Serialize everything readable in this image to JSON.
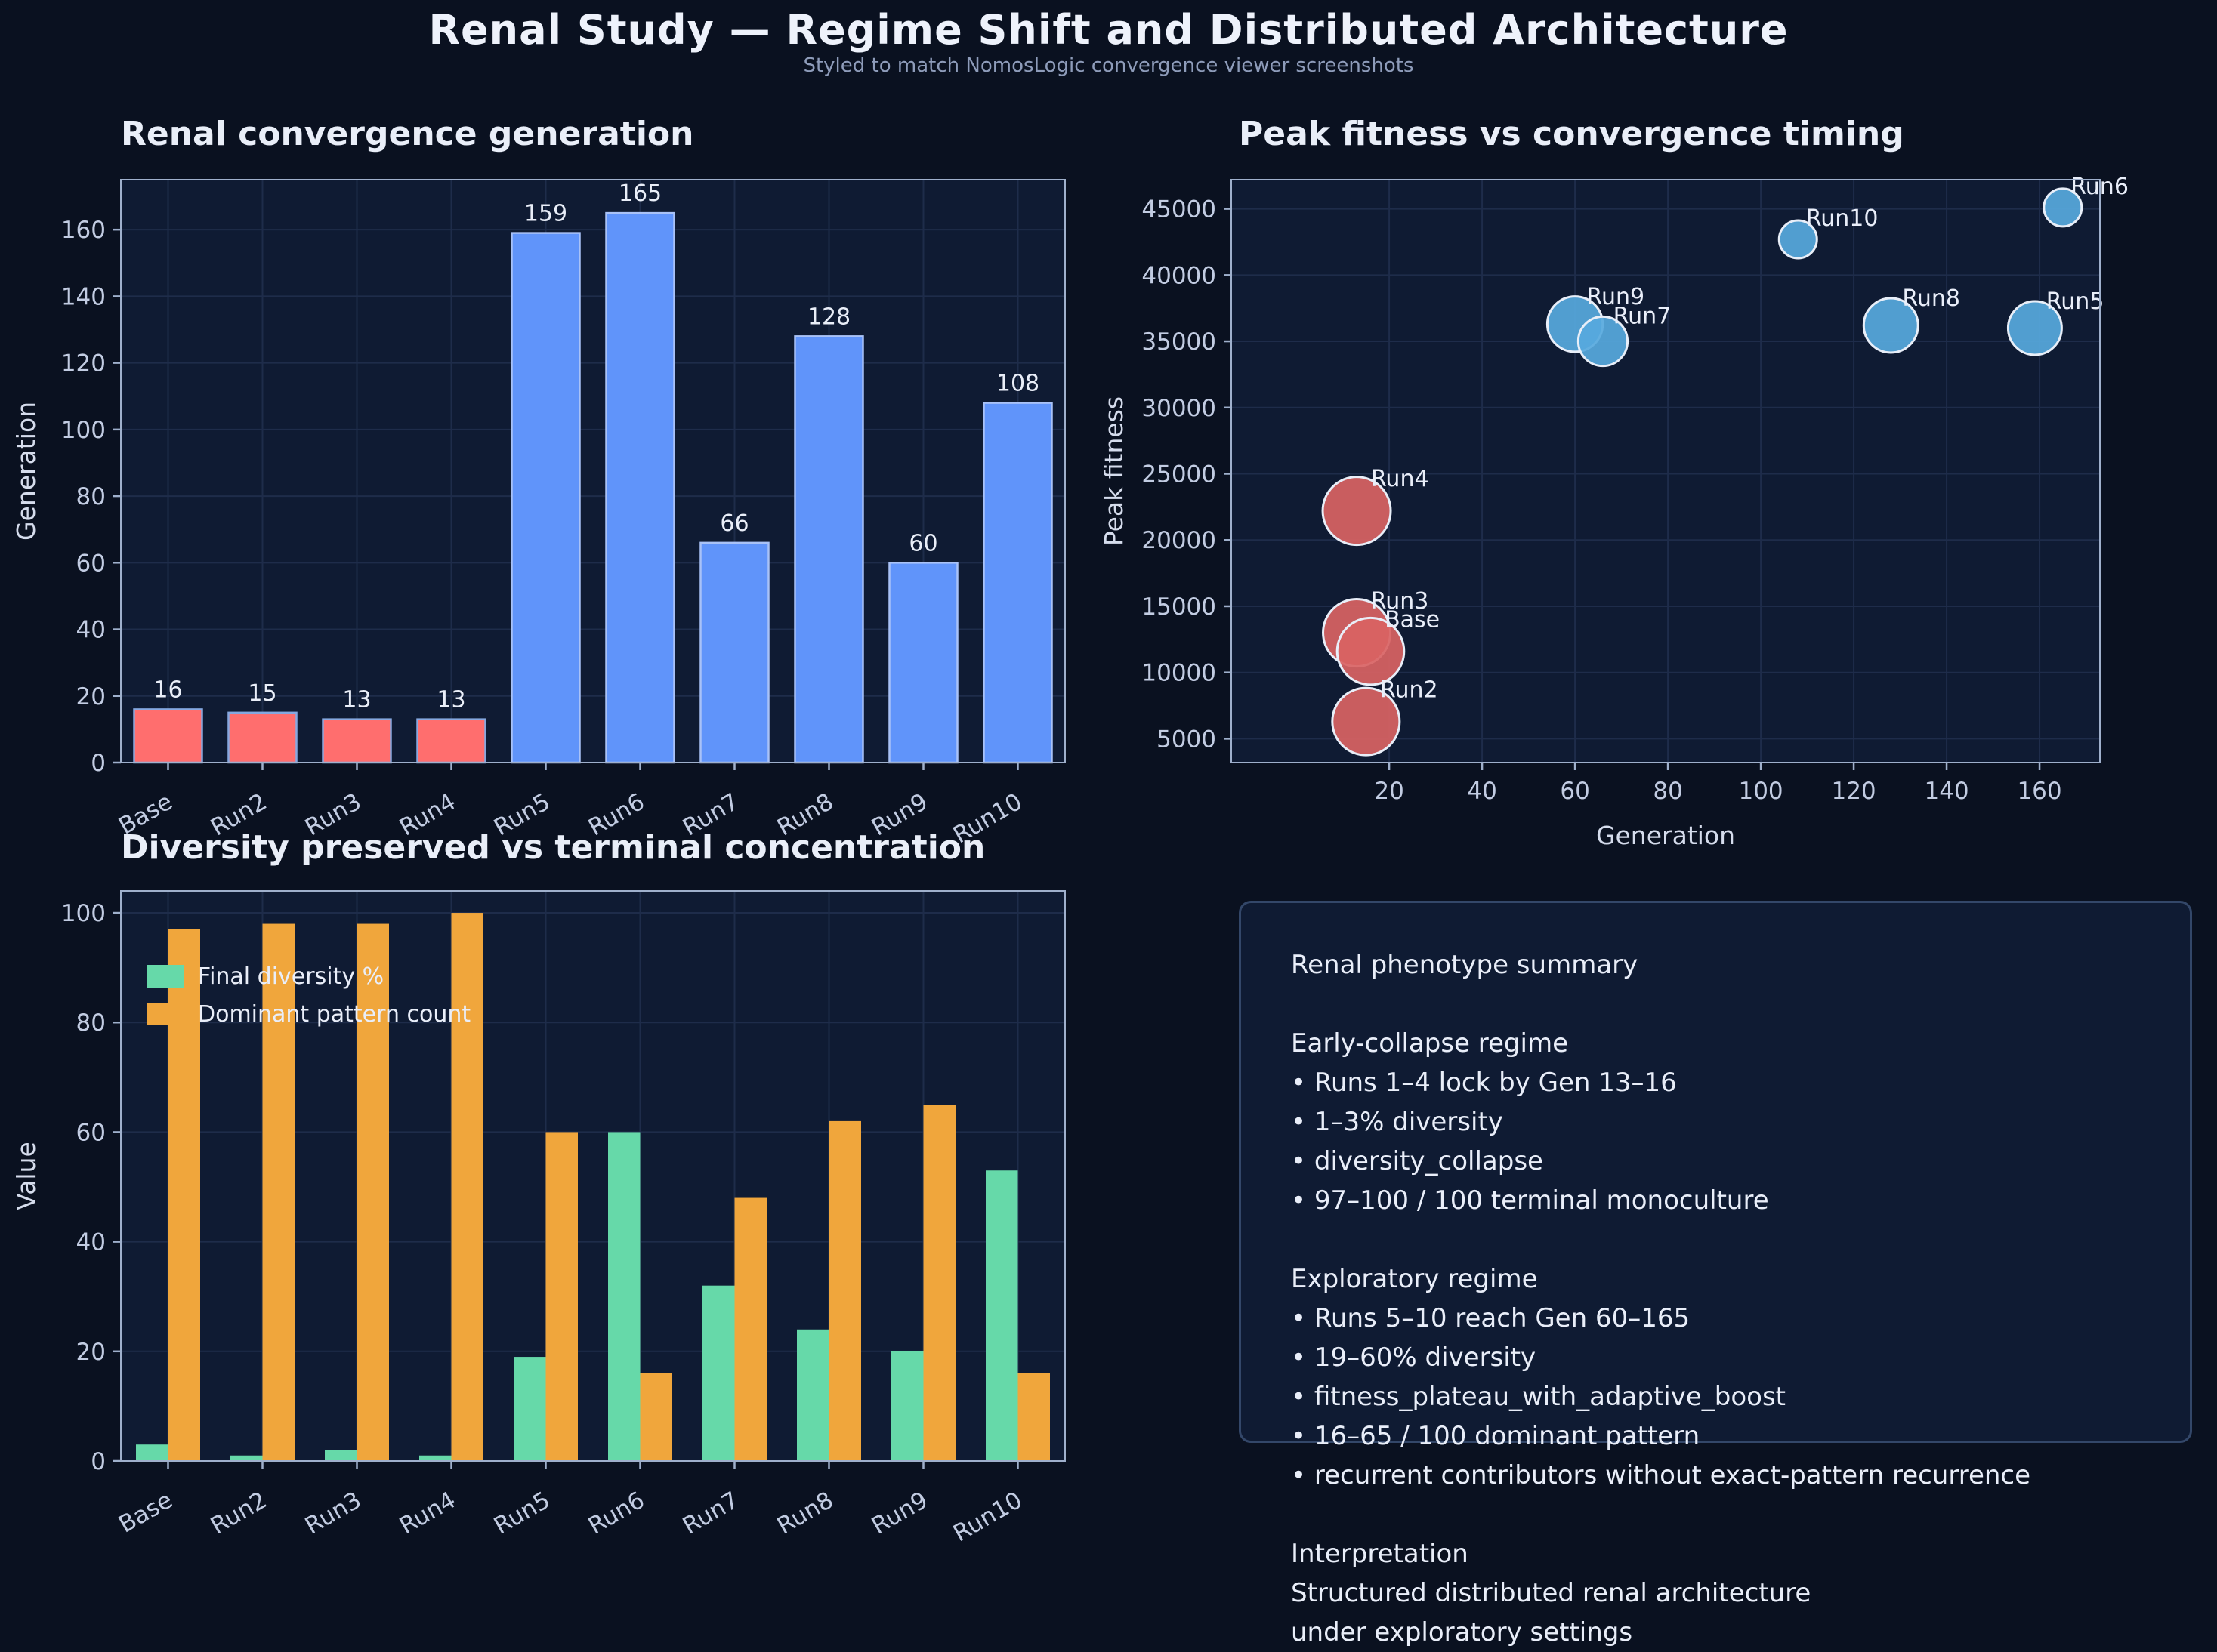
{
  "page": {
    "title": "Renal Study — Regime Shift and Distributed Architecture",
    "subtitle": "Styled to match NomosLogic convergence viewer screenshots"
  },
  "colors": {
    "page_bg": "#0a1120",
    "plot_bg": "#0f1b33",
    "grid": "#1e2c4a",
    "spine": "#9fb0cc",
    "tick_label": "#c2cce2",
    "axis_label": "#d5dcec",
    "title": "#e9eef8",
    "subtitle": "#8e9cba",
    "value_label": "#e9eef8",
    "bar_early": "#ff6e6e",
    "bar_early_edge": "#85a8e0",
    "bar_exploratory": "#6094fa",
    "bar_exploratory_edge": "#a9c2f7",
    "scatter_early": "#d96363",
    "scatter_exploratory": "#57a9dd",
    "scatter_edge": "#e8eef8",
    "green": "#66d9a9",
    "orange": "#f0a63c",
    "panel_border": "#334769",
    "panel_bg": "#0f1b33",
    "panel_text": "#e9eef9"
  },
  "chart_data": [
    {
      "id": "convergence",
      "type": "bar",
      "title": "Renal convergence generation",
      "xlabel": "",
      "ylabel": "Generation",
      "categories": [
        "Base",
        "Run2",
        "Run3",
        "Run4",
        "Run5",
        "Run6",
        "Run7",
        "Run8",
        "Run9",
        "Run10"
      ],
      "values": [
        16,
        15,
        13,
        13,
        159,
        165,
        66,
        128,
        60,
        108
      ],
      "groups": [
        "early",
        "early",
        "early",
        "early",
        "exploratory",
        "exploratory",
        "exploratory",
        "exploratory",
        "exploratory",
        "exploratory"
      ],
      "ylim": [
        0,
        175
      ],
      "yticks": [
        0,
        20,
        40,
        60,
        80,
        100,
        120,
        140,
        160
      ],
      "grid": true,
      "value_labels": true
    },
    {
      "id": "timing",
      "type": "scatter",
      "title": "Peak fitness vs convergence timing",
      "xlabel": "Generation",
      "ylabel": "Peak fitness",
      "xlim": [
        -14,
        173
      ],
      "ylim": [
        3200,
        47200
      ],
      "xticks": [
        20,
        40,
        60,
        80,
        100,
        120,
        140,
        160
      ],
      "yticks": [
        5000,
        10000,
        15000,
        20000,
        25000,
        30000,
        35000,
        40000,
        45000
      ],
      "grid": true,
      "points": [
        {
          "label": "Run3",
          "x": 13,
          "y": 13000,
          "size": 98,
          "group": "early"
        },
        {
          "label": "Run2",
          "x": 15,
          "y": 6300,
          "size": 98,
          "group": "early"
        },
        {
          "label": "Run4",
          "x": 13,
          "y": 22200,
          "size": 100,
          "group": "early"
        },
        {
          "label": "Base",
          "x": 16,
          "y": 11600,
          "size": 97,
          "group": "early"
        },
        {
          "label": "Run9",
          "x": 60,
          "y": 36300,
          "size": 65,
          "group": "exploratory"
        },
        {
          "label": "Run7",
          "x": 66,
          "y": 35000,
          "size": 48,
          "group": "exploratory"
        },
        {
          "label": "Run5",
          "x": 159,
          "y": 36000,
          "size": 60,
          "group": "exploratory"
        },
        {
          "label": "Run8",
          "x": 128,
          "y": 36200,
          "size": 62,
          "group": "exploratory"
        },
        {
          "label": "Run6",
          "x": 165,
          "y": 45100,
          "size": 16,
          "group": "exploratory"
        },
        {
          "label": "Run10",
          "x": 108,
          "y": 42700,
          "size": 16,
          "group": "exploratory"
        }
      ]
    },
    {
      "id": "diversity",
      "type": "grouped_bar",
      "title": "Diversity preserved vs terminal concentration",
      "xlabel": "",
      "ylabel": "Value",
      "categories": [
        "Base",
        "Run2",
        "Run3",
        "Run4",
        "Run5",
        "Run6",
        "Run7",
        "Run8",
        "Run9",
        "Run10"
      ],
      "series": [
        {
          "name": "Final diversity %",
          "color_key": "green",
          "values": [
            3,
            1,
            2,
            1,
            19,
            60,
            32,
            24,
            20,
            53
          ]
        },
        {
          "name": "Dominant pattern count",
          "color_key": "orange",
          "values": [
            97,
            98,
            98,
            100,
            60,
            16,
            48,
            62,
            65,
            16
          ]
        }
      ],
      "ylim": [
        0,
        104
      ],
      "yticks": [
        0,
        20,
        40,
        60,
        80,
        100
      ],
      "grid": true,
      "legend": true,
      "legend_position": "top-left"
    }
  ],
  "summary_panel": {
    "lines": [
      "Renal phenotype summary",
      "",
      "Early-collapse regime",
      "• Runs 1–4 lock by Gen 13–16",
      "• 1–3% diversity",
      "• diversity_collapse",
      "• 97–100 / 100 terminal monoculture",
      "",
      "Exploratory regime",
      "• Runs 5–10 reach Gen 60–165",
      "• 19–60% diversity",
      "• fitness_plateau_with_adaptive_boost",
      "• 16–65 / 100 dominant pattern",
      "• recurrent contributors without exact-pattern recurrence",
      "",
      "Interpretation",
      "Structured distributed renal architecture",
      "under exploratory settings"
    ]
  }
}
